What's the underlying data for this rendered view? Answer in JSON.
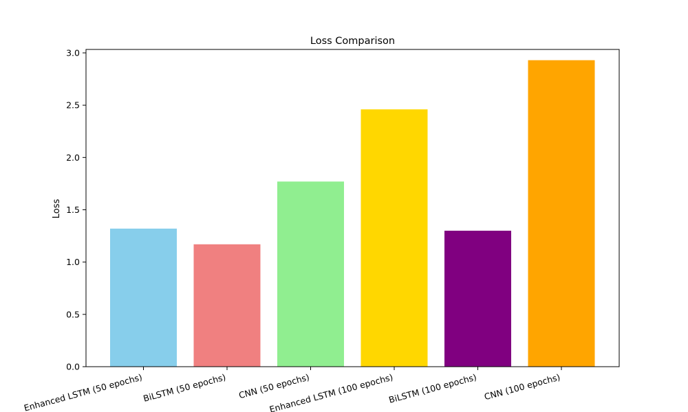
{
  "chart_data": {
    "type": "bar",
    "title": "Loss Comparison",
    "xlabel": "",
    "ylabel": "Loss",
    "ylim": [
      0,
      3.0
    ],
    "yticks": [
      0.0,
      0.5,
      1.0,
      1.5,
      2.0,
      2.5,
      3.0
    ],
    "ytick_labels": [
      "0.0",
      "0.5",
      "1.0",
      "1.5",
      "2.0",
      "2.5",
      "3.0"
    ],
    "grid": false,
    "categories": [
      "Enhanced LSTM (50 epochs)",
      "BiLSTM (50 epochs)",
      "CNN (50 epochs)",
      "Enhanced LSTM (100 epochs)",
      "BiLSTM (100 epochs)",
      "CNN (100 epochs)"
    ],
    "values": [
      1.32,
      1.17,
      1.77,
      2.46,
      1.3,
      2.93
    ],
    "colors": [
      "#87CEEB",
      "#F08080",
      "#90EE90",
      "#FFD700",
      "#800080",
      "#FFA500"
    ]
  }
}
